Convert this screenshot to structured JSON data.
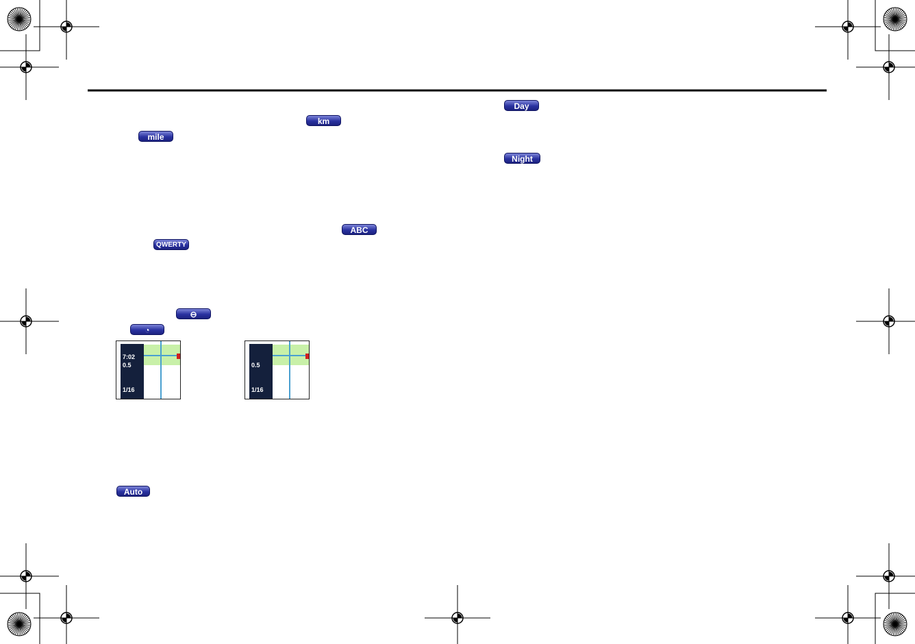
{
  "buttons": {
    "km": "km",
    "mile": "mile",
    "abc": "ABC",
    "qwerty": "QWERTY",
    "auto": "Auto",
    "day": "Day",
    "night": "Night"
  },
  "screens": [
    {
      "time": "7:02",
      "distance": "0.5",
      "scale": "1/16"
    },
    {
      "time": "",
      "distance": "0.5",
      "scale": "1/16"
    }
  ]
}
